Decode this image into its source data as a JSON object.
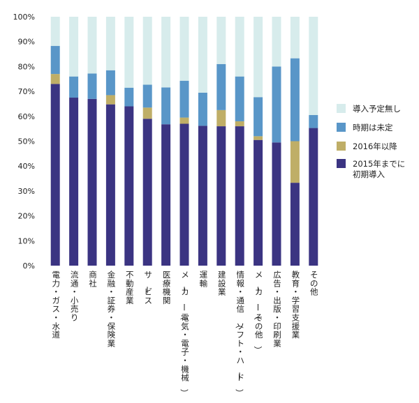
{
  "chart_data": {
    "type": "bar",
    "stacked": true,
    "percent": true,
    "categories": [
      "電力・ガス・水道",
      "流通・小売り",
      "商社",
      "金融・証券・保険業",
      "不動産業",
      "サービス",
      "医療機関",
      "メーカー（電気・電子・機械）",
      "運輸",
      "建設業",
      "情報・通信（ソフト・ハード）",
      "メーカー（その他）",
      "広告・出版・印刷業",
      "教育・学習支援業",
      "その他"
    ],
    "series": [
      {
        "name": "2015年までに初期導入",
        "color": "#3b3482",
        "values": [
          73.0,
          67.5,
          67.0,
          64.8,
          64.0,
          59.0,
          56.8,
          57.0,
          56.2,
          56.0,
          56.0,
          50.5,
          49.5,
          33.3,
          55.3
        ]
      },
      {
        "name": "2016年以降",
        "color": "#bfae67",
        "values": [
          4.0,
          0.0,
          0.0,
          3.7,
          0.0,
          4.5,
          0.0,
          2.5,
          0.0,
          6.5,
          2.0,
          1.5,
          0.0,
          16.7,
          0.0
        ]
      },
      {
        "name": "時期は未定",
        "color": "#5996c8",
        "values": [
          11.3,
          8.5,
          10.2,
          10.0,
          7.5,
          9.2,
          14.8,
          14.8,
          13.3,
          18.5,
          18.0,
          15.7,
          30.5,
          33.3,
          5.2
        ]
      },
      {
        "name": "導入予定無し",
        "color": "#d7ecec",
        "values": [
          11.7,
          24.0,
          22.8,
          21.5,
          28.5,
          27.3,
          28.4,
          25.7,
          30.5,
          19.0,
          24.0,
          32.3,
          20.0,
          16.7,
          39.5
        ]
      }
    ],
    "y_ticks": [
      "0%",
      "10%",
      "20%",
      "30%",
      "40%",
      "50%",
      "60%",
      "70%",
      "80%",
      "90%",
      "100%"
    ],
    "ylim": [
      0,
      100
    ],
    "legend": {
      "position": "right",
      "entries": [
        {
          "label": "導入予定無し",
          "color": "#d7ecec"
        },
        {
          "label": "時期は未定",
          "color": "#5996c8"
        },
        {
          "label": "2016年以降",
          "color": "#bfae67"
        },
        {
          "label": "2015年までに\n初期導入",
          "color": "#3b3482"
        }
      ]
    },
    "grid": false
  }
}
